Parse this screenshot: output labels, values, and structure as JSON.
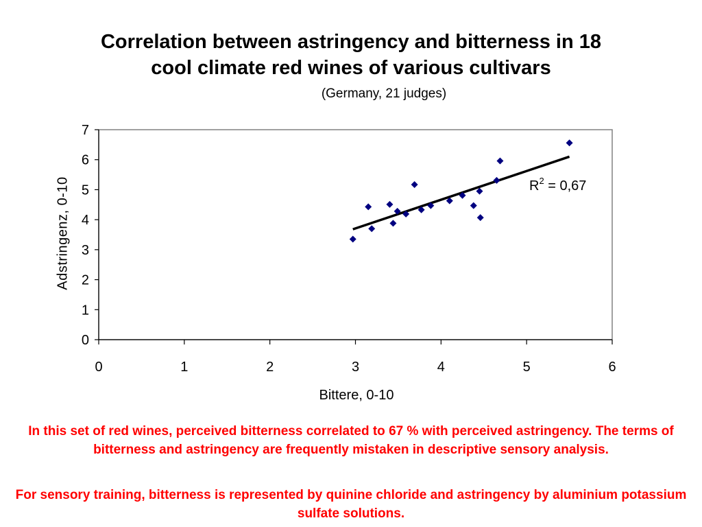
{
  "chart_data": {
    "type": "scatter",
    "title_line1": "Correlation between astringency and bitterness in 18",
    "title_line2": "cool climate red wines of various cultivars",
    "subtitle": "(Germany, 21 judges)",
    "xlabel": "Bittere, 0-10",
    "ylabel": "Adstringenz, 0-10",
    "xlim": [
      0,
      6
    ],
    "ylim": [
      0,
      7
    ],
    "xticks": [
      0,
      1,
      2,
      3,
      4,
      5,
      6
    ],
    "yticks": [
      0,
      1,
      2,
      3,
      4,
      5,
      6,
      7
    ],
    "grid": false,
    "marker_color": "#000080",
    "trendline_color": "#000000",
    "points": [
      {
        "x": 2.97,
        "y": 3.35
      },
      {
        "x": 3.15,
        "y": 4.43
      },
      {
        "x": 3.19,
        "y": 3.7
      },
      {
        "x": 3.4,
        "y": 4.51
      },
      {
        "x": 3.44,
        "y": 3.88
      },
      {
        "x": 3.49,
        "y": 4.28
      },
      {
        "x": 3.59,
        "y": 4.19
      },
      {
        "x": 3.69,
        "y": 5.17
      },
      {
        "x": 3.77,
        "y": 4.33
      },
      {
        "x": 3.88,
        "y": 4.47
      },
      {
        "x": 4.1,
        "y": 4.63
      },
      {
        "x": 4.25,
        "y": 4.81
      },
      {
        "x": 4.38,
        "y": 4.47
      },
      {
        "x": 4.45,
        "y": 4.95
      },
      {
        "x": 4.46,
        "y": 4.07
      },
      {
        "x": 4.65,
        "y": 5.31
      },
      {
        "x": 4.69,
        "y": 5.96
      },
      {
        "x": 5.5,
        "y": 6.56
      }
    ],
    "trendline": {
      "x_start": 2.97,
      "y_start": 3.68,
      "x_end": 5.5,
      "y_end": 6.1
    },
    "r2_prefix": "R",
    "r2_sup": "2",
    "r2_value": " = 0,67"
  },
  "notes": {
    "paragraph1": "In this set of red wines, perceived bitterness correlated to 67 % with perceived astringency. The terms of bitterness and astringency are frequently mistaken in descriptive sensory analysis.",
    "paragraph2": "For sensory training, bitterness is represented by quinine chloride and astringency by aluminium potassium sulfate solutions."
  }
}
